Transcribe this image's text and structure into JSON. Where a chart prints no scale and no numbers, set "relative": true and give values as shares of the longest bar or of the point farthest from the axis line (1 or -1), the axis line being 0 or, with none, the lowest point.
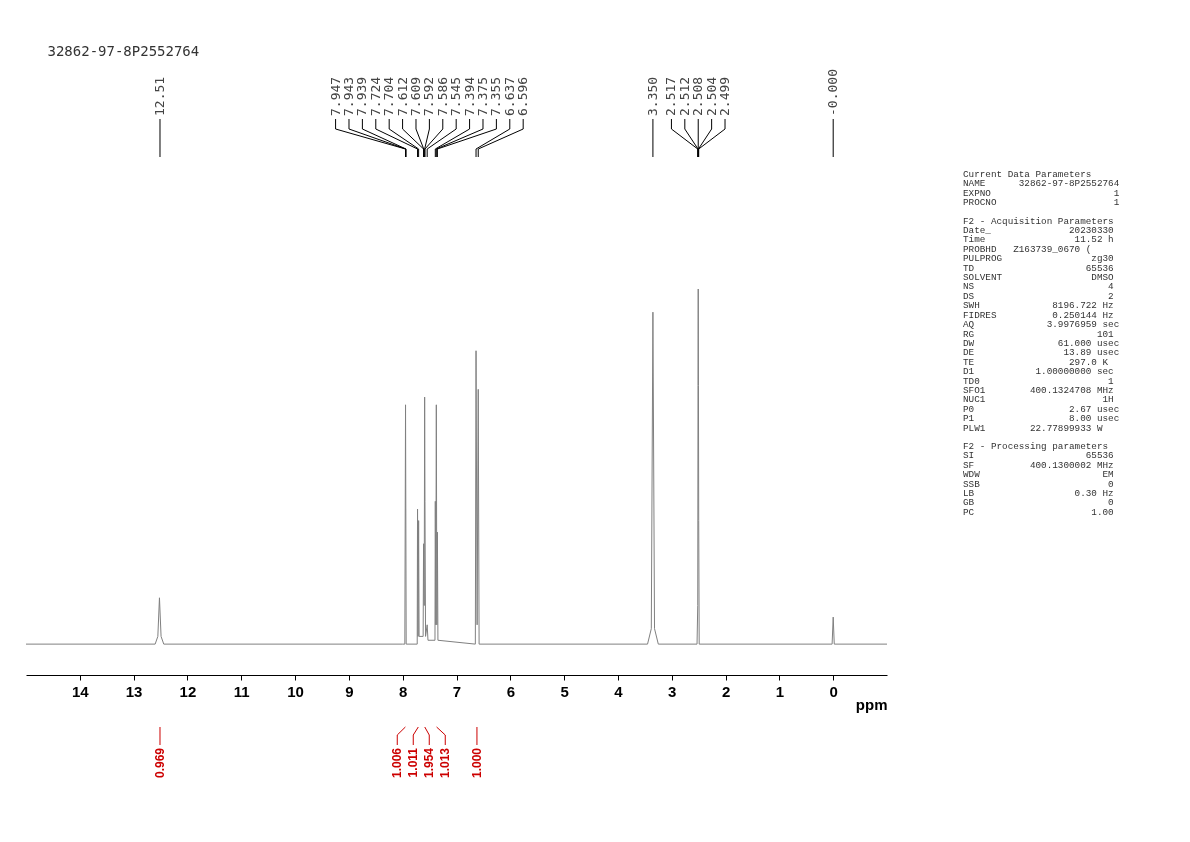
{
  "chart_data": {
    "type": "line",
    "title": "32862-97-8P2552764",
    "xlabel": "ppm",
    "relative": true,
    "xlim": [
      15,
      -1
    ],
    "xticks": [
      14,
      13,
      12,
      11,
      10,
      9,
      8,
      7,
      6,
      5,
      4,
      3,
      2,
      1,
      0
    ],
    "grid": false,
    "marker": "none",
    "line_style": "solid",
    "x": [
      15,
      12.6,
      12.55,
      12.52,
      12.49,
      12.44,
      8.0,
      7.96,
      7.947,
      7.935,
      7.73,
      7.724,
      7.714,
      7.704,
      7.695,
      7.62,
      7.612,
      7.6,
      7.592,
      7.586,
      7.575,
      7.545,
      7.53,
      7.4,
      7.394,
      7.385,
      7.375,
      7.365,
      7.355,
      7.345,
      6.65,
      6.637,
      6.617,
      6.596,
      6.58,
      3.45,
      3.38,
      3.35,
      3.32,
      3.25,
      2.53,
      2.517,
      2.512,
      2.508,
      2.504,
      2.499,
      2.49,
      0.02,
      0.0,
      -0.02,
      -1
    ],
    "series": [
      {
        "color": "#808080",
        "values": [
          0.08,
          0.08,
          0.1,
          0.2,
          0.1,
          0.08,
          0.08,
          0.08,
          0.7,
          0.08,
          0.08,
          0.43,
          0.1,
          0.4,
          0.1,
          0.1,
          0.34,
          0.18,
          0.72,
          0.45,
          0.1,
          0.13,
          0.09,
          0.09,
          0.45,
          0.13,
          0.7,
          0.13,
          0.37,
          0.09,
          0.08,
          0.84,
          0.13,
          0.74,
          0.08,
          0.08,
          0.12,
          0.94,
          0.12,
          0.08,
          0.08,
          0.18,
          0.75,
          1.0,
          0.75,
          0.4,
          0.08,
          0.08,
          0.15,
          0.08,
          0.08
        ]
      }
    ],
    "annotations": [
      {
        "text": "12.51",
        "x": 12.51
      },
      {
        "text": "7.947",
        "x": 7.947
      },
      {
        "text": "7.943",
        "x": 7.943
      },
      {
        "text": "7.939",
        "x": 7.939
      },
      {
        "text": "7.724",
        "x": 7.724
      },
      {
        "text": "7.704",
        "x": 7.704
      },
      {
        "text": "7.612",
        "x": 7.612
      },
      {
        "text": "7.609",
        "x": 7.609
      },
      {
        "text": "7.592",
        "x": 7.592
      },
      {
        "text": "7.586",
        "x": 7.586
      },
      {
        "text": "7.545",
        "x": 7.545
      },
      {
        "text": "7.394",
        "x": 7.394
      },
      {
        "text": "7.375",
        "x": 7.375
      },
      {
        "text": "7.355",
        "x": 7.355
      },
      {
        "text": "6.637",
        "x": 6.637
      },
      {
        "text": "6.596",
        "x": 6.596
      },
      {
        "text": "3.350",
        "x": 3.35
      },
      {
        "text": "2.517",
        "x": 2.517
      },
      {
        "text": "2.512",
        "x": 2.512
      },
      {
        "text": "2.508",
        "x": 2.508
      },
      {
        "text": "2.504",
        "x": 2.504
      },
      {
        "text": "2.499",
        "x": 2.499
      },
      {
        "text": "-0.000",
        "x": 0.0
      },
      {
        "text": "0.969",
        "x": 12.51
      },
      {
        "text": "1.006",
        "x": 7.95
      },
      {
        "text": "1.011",
        "x": 7.71
      },
      {
        "text": "1.954",
        "x": 7.59
      },
      {
        "text": "1.013",
        "x": 7.37
      },
      {
        "text": "1.000",
        "x": 6.62
      },
      "Current Data Parameters",
      "NAME      32862-97-8P2552764",
      "EXPNO                      1",
      "PROCNO                     1",
      "F2 - Acquisition Parameters",
      "Date_              20230330",
      "Time                11.52 h",
      "PROBHD   Z163739_0670 (",
      "PULPROG                zg30",
      "TD                    65536",
      "SOLVENT                DMSO",
      "NS                        4",
      "DS                        2",
      "SWH             8196.722 Hz",
      "FIDRES          0.250144 Hz",
      "AQ             3.9976959 sec",
      "RG                      101",
      "DW               61.000 usec",
      "DE                13.89 usec",
      "TE                 297.0 K",
      "D1           1.00000000 sec",
      "TD0                       1",
      "SFO1        400.1324708 MHz",
      "NUC1                     1H",
      "P0                 2.67 usec",
      "P1                 8.00 usec",
      "PLW1        22.77899933 W",
      "F2 - Processing parameters",
      "SI                    65536",
      "SF          400.1300002 MHz",
      "WDW                      EM",
      "SSB                       0",
      "LB                  0.30 Hz",
      "GB                        0",
      "PC                     1.00"
    ]
  }
}
